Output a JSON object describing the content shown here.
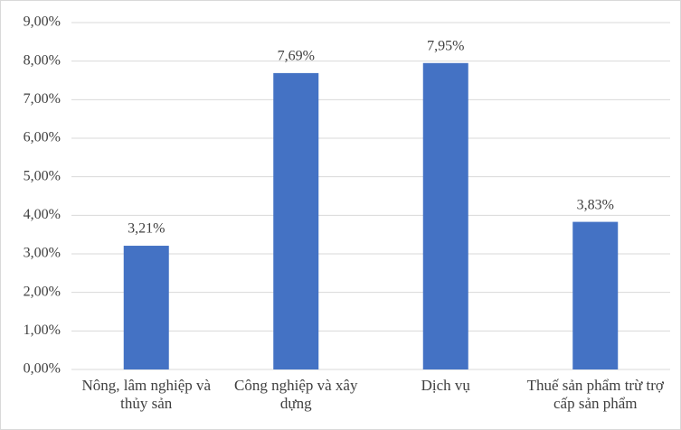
{
  "chart_data": {
    "type": "bar",
    "categories": [
      "Nông, lâm nghiệp và thủy sản",
      "Công nghiệp và xây dựng",
      "Dịch vụ",
      "Thuế sản phẩm trừ trợ cấp sản phẩm"
    ],
    "values": [
      3.21,
      7.69,
      7.95,
      3.83
    ],
    "value_labels": [
      "3,21%",
      "7,69%",
      "7,95%",
      "3,83%"
    ],
    "color": "#4472c4",
    "ylim": [
      0,
      9
    ],
    "yticks": [
      {
        "value": 0,
        "label": "0,00%"
      },
      {
        "value": 1,
        "label": "1,00%"
      },
      {
        "value": 2,
        "label": "2,00%"
      },
      {
        "value": 3,
        "label": "3,00%"
      },
      {
        "value": 4,
        "label": "4,00%"
      },
      {
        "value": 5,
        "label": "5,00%"
      },
      {
        "value": 6,
        "label": "6,00%"
      },
      {
        "value": 7,
        "label": "7,00%"
      },
      {
        "value": 8,
        "label": "8,00%"
      },
      {
        "value": 9,
        "label": "9,00%"
      }
    ],
    "grid": true
  }
}
